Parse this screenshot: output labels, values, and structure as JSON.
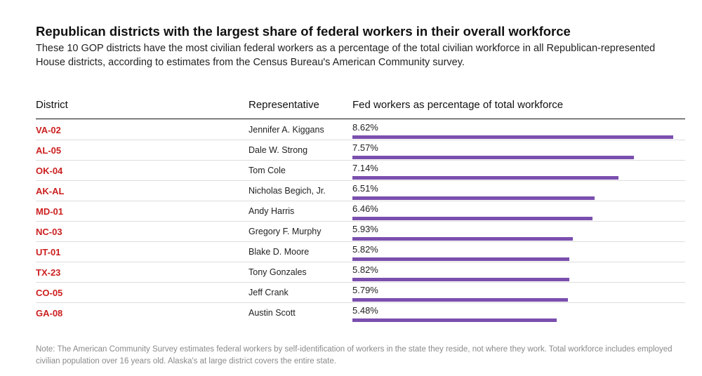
{
  "title": "Republican districts with the largest share of federal workers in their overall workforce",
  "subtitle": "These 10 GOP districts have the most civilian federal workers as a percentage of the total civilian workforce in all Republican-represented House districts, according to estimates from the Census Bureau's American Community survey.",
  "note": "Note: The American Community Survey estimates federal workers by self-identification of workers in the state they reside, not where they work. Total workforce includes employed civilian population over 16 years old. Alaska's at large district covers the entire state.",
  "colors": {
    "district": "#cc1f1f",
    "bar": "#7b4fae"
  },
  "chart_data": {
    "type": "table",
    "columns": [
      "District",
      "Representative",
      "Fed workers as percentage of total workforce"
    ],
    "rows": [
      {
        "district": "VA-02",
        "representative": "Jennifer A. Kiggans",
        "value": 8.62,
        "label": "8.62%"
      },
      {
        "district": "AL-05",
        "representative": "Dale W. Strong",
        "value": 7.57,
        "label": "7.57%"
      },
      {
        "district": "OK-04",
        "representative": "Tom Cole",
        "value": 7.14,
        "label": "7.14%"
      },
      {
        "district": "AK-AL",
        "representative": "Nicholas Begich, Jr.",
        "value": 6.51,
        "label": "6.51%"
      },
      {
        "district": "MD-01",
        "representative": "Andy Harris",
        "value": 6.46,
        "label": "6.46%"
      },
      {
        "district": "NC-03",
        "representative": "Gregory F. Murphy",
        "value": 5.93,
        "label": "5.93%"
      },
      {
        "district": "UT-01",
        "representative": "Blake D. Moore",
        "value": 5.82,
        "label": "5.82%"
      },
      {
        "district": "TX-23",
        "representative": "Tony Gonzales",
        "value": 5.82,
        "label": "5.82%"
      },
      {
        "district": "CO-05",
        "representative": "Jeff Crank",
        "value": 5.79,
        "label": "5.79%"
      },
      {
        "district": "GA-08",
        "representative": "Austin Scott",
        "value": 5.48,
        "label": "5.48%"
      }
    ]
  }
}
